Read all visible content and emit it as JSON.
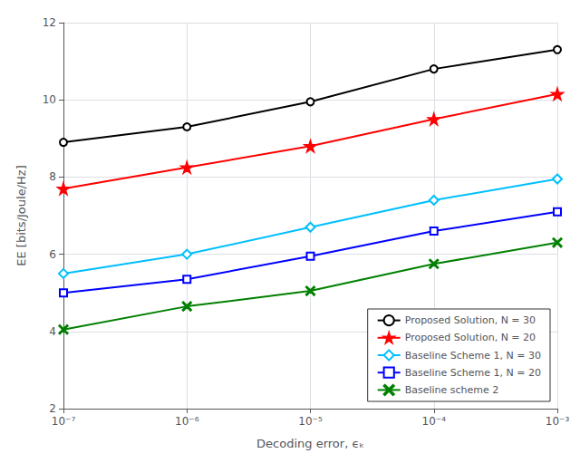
{
  "chart_data": {
    "type": "line",
    "log": "x",
    "grid": true,
    "legend": "lower right",
    "x": [
      1e-07,
      1e-06,
      1e-05,
      0.0001,
      0.001
    ],
    "xlabel": "Decoding error, ϵₖ",
    "ylabel": "EE [bits/Joule/Hz]",
    "xlim": [
      1e-07,
      0.001
    ],
    "xticks": [
      {
        "value": 1e-07,
        "label": "10⁻⁷"
      },
      {
        "value": 1e-06,
        "label": "10⁻⁶"
      },
      {
        "value": 1e-05,
        "label": "10⁻⁵"
      },
      {
        "value": 0.0001,
        "label": "10⁻⁴"
      },
      {
        "value": 0.001,
        "label": "10⁻³"
      }
    ],
    "ylim": [
      2,
      12
    ],
    "yticks": [
      2,
      4,
      6,
      8,
      10,
      12
    ],
    "series": [
      {
        "name": "Proposed Solution, N = 30",
        "color": "black",
        "marker": "circle",
        "values": [
          8.9,
          9.3,
          9.95,
          10.8,
          11.3
        ]
      },
      {
        "name": "Proposed Solution, N = 20",
        "color": "red",
        "marker": "star",
        "values": [
          7.7,
          8.25,
          8.8,
          9.5,
          10.15
        ]
      },
      {
        "name": "Baseline Scheme 1, N = 30",
        "color": "#00BFFF",
        "marker": "diamond",
        "values": [
          5.5,
          6.0,
          6.7,
          7.4,
          7.95
        ]
      },
      {
        "name": "Baseline Scheme 1, N = 20",
        "color": "blue",
        "marker": "square",
        "values": [
          5.0,
          5.35,
          5.95,
          6.6,
          7.1
        ]
      },
      {
        "name": "Baseline scheme 2",
        "color": "green",
        "marker": "x",
        "values": [
          4.05,
          4.65,
          5.05,
          5.75,
          6.3
        ]
      }
    ]
  }
}
